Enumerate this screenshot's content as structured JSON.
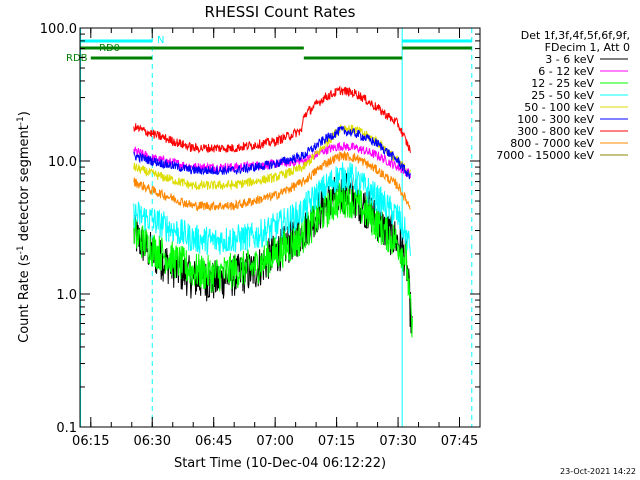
{
  "chart_data": {
    "type": "line",
    "title": "RHESSI Count Rates",
    "xlabel": "Start Time (10-Dec-04 06:12:22)",
    "ylabel_main": "Count Rate (s",
    "ylabel_sup1": "-1",
    "ylabel_mid": " detector segment",
    "ylabel_sup2": "-1",
    "ylabel_end": ")",
    "yscale": "log",
    "ylim": [
      0.1,
      100.0
    ],
    "xlim_minutes": [
      "06:12:22",
      "07:50:00"
    ],
    "y_ticks": [
      "0.1",
      "1.0",
      "10.0",
      "100.0"
    ],
    "x_ticks": [
      "06:15",
      "06:30",
      "06:45",
      "07:00",
      "07:15",
      "07:30",
      "07:45"
    ],
    "footer_date": "23-Oct-2021 14:22",
    "legend": {
      "header1": "Det 1f,3f,4f,5f,6f,9f,",
      "header2": "FDecim 1, Att 0",
      "entries": [
        {
          "label": "3 - 6 keV",
          "color": "#000000"
        },
        {
          "label": "6 - 12 keV",
          "color": "#ff00ff"
        },
        {
          "label": "12 - 25 keV",
          "color": "#00ff00"
        },
        {
          "label": "25 - 50 keV",
          "color": "#00ffff"
        },
        {
          "label": "50 - 100 keV",
          "color": "#dddd00"
        },
        {
          "label": "100 - 300 keV",
          "color": "#0000ff"
        },
        {
          "label": "300 - 800 keV",
          "color": "#ff0000"
        },
        {
          "label": "800 - 7000 keV",
          "color": "#ff8800"
        },
        {
          "label": "7000 - 15000 keV",
          "color": "#888800"
        }
      ]
    },
    "flags": {
      "N_label": "N",
      "RD0_label": "RD0",
      "RDB_label": "RDB",
      "N_segments": [
        [
          "06:12:22",
          "06:30:00"
        ],
        [
          "07:31:00",
          "07:48:00"
        ]
      ],
      "RD0_segments": [
        [
          "06:12:22",
          "06:30:00"
        ],
        [
          "06:30:00",
          "07:07:00"
        ],
        [
          "07:31:00",
          "07:48:00"
        ]
      ],
      "RDB_segments": [
        [
          "06:15:00",
          "06:30:00"
        ],
        [
          "07:07:00",
          "07:31:00"
        ]
      ],
      "flag_color_N": "#00ffff",
      "flag_color_RD": "#008000"
    },
    "markers": {
      "solid_cyan_times": [
        "06:12:30",
        "07:31:00"
      ],
      "dashed_cyan_times": [
        "06:30:00",
        "07:48:00"
      ]
    },
    "series": [
      {
        "name": "3 - 6 keV",
        "color": "#000000",
        "points": [
          [
            "06:25:30",
            2.8
          ],
          [
            "06:30:00",
            2.0
          ],
          [
            "06:40:00",
            1.3
          ],
          [
            "06:45:00",
            1.25
          ],
          [
            "06:55:00",
            1.5
          ],
          [
            "07:00:00",
            2.0
          ],
          [
            "07:06:00",
            2.8
          ],
          [
            "07:10:00",
            4.0
          ],
          [
            "07:15:00",
            5.6
          ],
          [
            "07:18:00",
            5.8
          ],
          [
            "07:22:00",
            4.5
          ],
          [
            "07:27:00",
            3.0
          ],
          [
            "07:30:00",
            2.5
          ],
          [
            "07:32:00",
            1.8
          ],
          [
            "07:33:30",
            0.5
          ]
        ]
      },
      {
        "name": "6 - 12 keV",
        "color": "#ff00ff",
        "points": [
          [
            "06:25:30",
            12.0
          ],
          [
            "06:30:00",
            10.5
          ],
          [
            "06:40:00",
            9.0
          ],
          [
            "06:50:00",
            9.0
          ],
          [
            "07:00:00",
            9.5
          ],
          [
            "07:07:00",
            10.0
          ],
          [
            "07:12:00",
            12.0
          ],
          [
            "07:16:00",
            13.0
          ],
          [
            "07:20:00",
            12.5
          ],
          [
            "07:25:00",
            11.0
          ],
          [
            "07:30:00",
            9.0
          ],
          [
            "07:33:00",
            8.0
          ]
        ]
      },
      {
        "name": "12 - 25 keV",
        "color": "#00ff00",
        "points": [
          [
            "06:25:30",
            2.8
          ],
          [
            "06:30:00",
            2.2
          ],
          [
            "06:40:00",
            1.5
          ],
          [
            "06:45:00",
            1.4
          ],
          [
            "06:55:00",
            1.6
          ],
          [
            "07:00:00",
            2.0
          ],
          [
            "07:06:00",
            2.6
          ],
          [
            "07:10:00",
            3.6
          ],
          [
            "07:15:00",
            5.0
          ],
          [
            "07:18:00",
            5.2
          ],
          [
            "07:22:00",
            4.2
          ],
          [
            "07:27:00",
            2.9
          ],
          [
            "07:30:00",
            2.4
          ],
          [
            "07:32:00",
            1.8
          ],
          [
            "07:33:30",
            0.5
          ]
        ]
      },
      {
        "name": "25 - 50 keV",
        "color": "#00ffff",
        "points": [
          [
            "06:25:30",
            4.0
          ],
          [
            "06:30:00",
            3.6
          ],
          [
            "06:40:00",
            2.6
          ],
          [
            "06:45:00",
            2.5
          ],
          [
            "06:55:00",
            2.7
          ],
          [
            "07:00:00",
            3.2
          ],
          [
            "07:06:00",
            4.0
          ],
          [
            "07:10:00",
            5.5
          ],
          [
            "07:15:00",
            7.5
          ],
          [
            "07:18:00",
            7.8
          ],
          [
            "07:22:00",
            6.3
          ],
          [
            "07:27:00",
            4.6
          ],
          [
            "07:30:00",
            3.8
          ],
          [
            "07:32:00",
            2.8
          ],
          [
            "07:33:00",
            2.2
          ]
        ]
      },
      {
        "name": "50 - 100 keV",
        "color": "#dddd00",
        "points": [
          [
            "06:25:30",
            9.0
          ],
          [
            "06:30:00",
            8.0
          ],
          [
            "06:40:00",
            6.5
          ],
          [
            "06:50:00",
            6.6
          ],
          [
            "07:00:00",
            7.5
          ],
          [
            "07:07:00",
            9.0
          ],
          [
            "07:12:00",
            13.0
          ],
          [
            "07:16:00",
            18.0
          ],
          [
            "07:20:00",
            17.0
          ],
          [
            "07:25:00",
            14.0
          ],
          [
            "07:30:00",
            10.0
          ],
          [
            "07:33:00",
            8.0
          ]
        ]
      },
      {
        "name": "100 - 300 keV",
        "color": "#0000ff",
        "points": [
          [
            "06:25:30",
            11.0
          ],
          [
            "06:30:00",
            10.0
          ],
          [
            "06:40:00",
            8.5
          ],
          [
            "06:50:00",
            8.5
          ],
          [
            "07:00:00",
            9.5
          ],
          [
            "07:07:00",
            11.0
          ],
          [
            "07:12:00",
            14.5
          ],
          [
            "07:16:00",
            17.0
          ],
          [
            "07:20:00",
            16.0
          ],
          [
            "07:25:00",
            13.5
          ],
          [
            "07:30:00",
            10.0
          ],
          [
            "07:33:00",
            7.5
          ]
        ]
      },
      {
        "name": "300 - 800 keV",
        "color": "#ff0000",
        "points": [
          [
            "06:25:30",
            18.0
          ],
          [
            "06:30:00",
            16.0
          ],
          [
            "06:40:00",
            12.5
          ],
          [
            "06:50:00",
            12.5
          ],
          [
            "07:00:00",
            14.0
          ],
          [
            "07:06:30",
            17.0
          ],
          [
            "07:07:00",
            22.0
          ],
          [
            "07:12:00",
            30.0
          ],
          [
            "07:16:00",
            34.0
          ],
          [
            "07:20:00",
            32.0
          ],
          [
            "07:25:00",
            25.0
          ],
          [
            "07:30:00",
            19.0
          ],
          [
            "07:33:00",
            12.0
          ]
        ]
      },
      {
        "name": "800 - 7000 keV",
        "color": "#ff8800",
        "points": [
          [
            "06:25:30",
            7.0
          ],
          [
            "06:30:00",
            6.0
          ],
          [
            "06:40:00",
            4.6
          ],
          [
            "06:50:00",
            4.6
          ],
          [
            "07:00:00",
            5.5
          ],
          [
            "07:07:00",
            7.0
          ],
          [
            "07:12:00",
            9.5
          ],
          [
            "07:16:00",
            11.0
          ],
          [
            "07:20:00",
            10.5
          ],
          [
            "07:25:00",
            8.5
          ],
          [
            "07:30:00",
            6.5
          ],
          [
            "07:33:00",
            4.5
          ]
        ]
      },
      {
        "name": "7000 - 15000 keV",
        "color": "#888800",
        "points": []
      }
    ]
  }
}
